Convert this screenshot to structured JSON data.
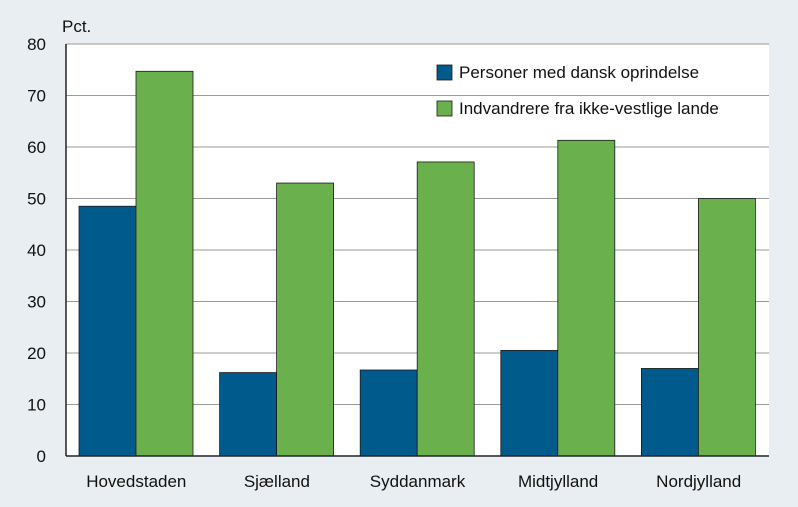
{
  "chart_data": {
    "type": "bar",
    "ylabel": "Pct.",
    "ylim": [
      0,
      80
    ],
    "yticks": [
      0,
      10,
      20,
      30,
      40,
      50,
      60,
      70,
      80
    ],
    "grid": true,
    "legend_position": "top-right",
    "categories": [
      "Hovedstaden",
      "Sjælland",
      "Syddanmark",
      "Midtjylland",
      "Nordjylland"
    ],
    "series": [
      {
        "name": "Personer med dansk oprindelse",
        "color": "#005a8c",
        "values": [
          48.5,
          16.2,
          16.7,
          20.5,
          17.0
        ]
      },
      {
        "name": "Indvandrere fra ikke-vestlige lande",
        "color": "#6ab04c",
        "values": [
          74.7,
          53.0,
          57.1,
          61.3,
          50.0
        ]
      }
    ]
  }
}
